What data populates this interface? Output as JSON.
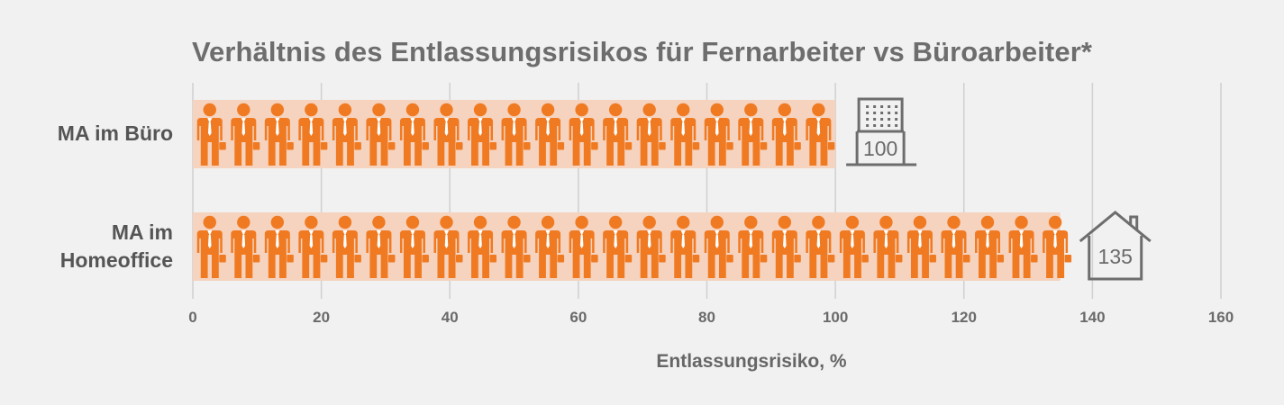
{
  "chart_data": {
    "type": "bar",
    "title": "Verhältnis des Entlassungsrisikos für Fernarbeiter vs Büroarbeiter*",
    "xlabel": "Entlassungsrisiko,  %",
    "ylabel": "",
    "orientation": "horizontal",
    "categories": [
      "MA im Büro",
      "MA im Homeoffice"
    ],
    "category_label_lines": [
      [
        "MA im Büro"
      ],
      [
        "MA im",
        "Homeoffice"
      ]
    ],
    "values": [
      100,
      135
    ],
    "value_labels": [
      "100",
      "135"
    ],
    "value_icons": [
      "office-building-icon",
      "house-icon"
    ],
    "xlim": [
      0,
      160
    ],
    "xticks": [
      0,
      20,
      40,
      60,
      80,
      100,
      120,
      140,
      160
    ],
    "grid": true,
    "marker": "person-with-briefcase-icon",
    "colors": {
      "bar_fill": "#f5d3bf",
      "person": "#f07a22",
      "grid": "#d0d0d0",
      "icon_stroke": "#6d6d6d"
    }
  }
}
